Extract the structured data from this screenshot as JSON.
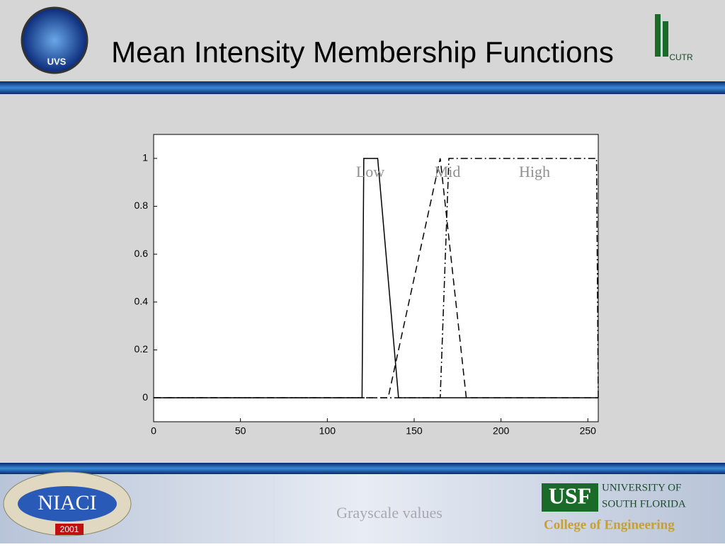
{
  "chart_data": {
    "type": "line",
    "title": "Mean Intensity Membership Functions",
    "xlabel": "Grayscale values",
    "xlim": [
      0,
      256
    ],
    "ylim": [
      -0.1,
      1.1
    ],
    "xticks": [
      0,
      50,
      100,
      150,
      200,
      250
    ],
    "yticks": [
      0,
      0.2,
      0.4,
      0.6,
      0.8,
      1
    ],
    "series": [
      {
        "name": "Low",
        "color": "#000000",
        "linestyle": "solid",
        "x": [
          0,
          120,
          121,
          129,
          141,
          256
        ],
        "values": [
          0,
          0,
          1,
          1,
          0,
          0
        ]
      },
      {
        "name": "Mid",
        "color": "#000000",
        "linestyle": "dashed",
        "x": [
          0,
          135,
          165,
          180,
          256
        ],
        "values": [
          0,
          0,
          1,
          0,
          0
        ]
      },
      {
        "name": "High",
        "color": "#000000",
        "linestyle": "dashdot",
        "x": [
          0,
          165,
          170,
          255,
          256
        ],
        "values": [
          0,
          0,
          1,
          1,
          0
        ]
      }
    ]
  },
  "logos": {
    "uvs": "UVS",
    "niaci": "NIACI",
    "niaci_year": "2001",
    "usf": "USF",
    "university_line1": "UNIVERSITY OF",
    "university_line2": "SOUTH FLORIDA",
    "college": "College of Engineering",
    "cutr": "CUTR"
  }
}
